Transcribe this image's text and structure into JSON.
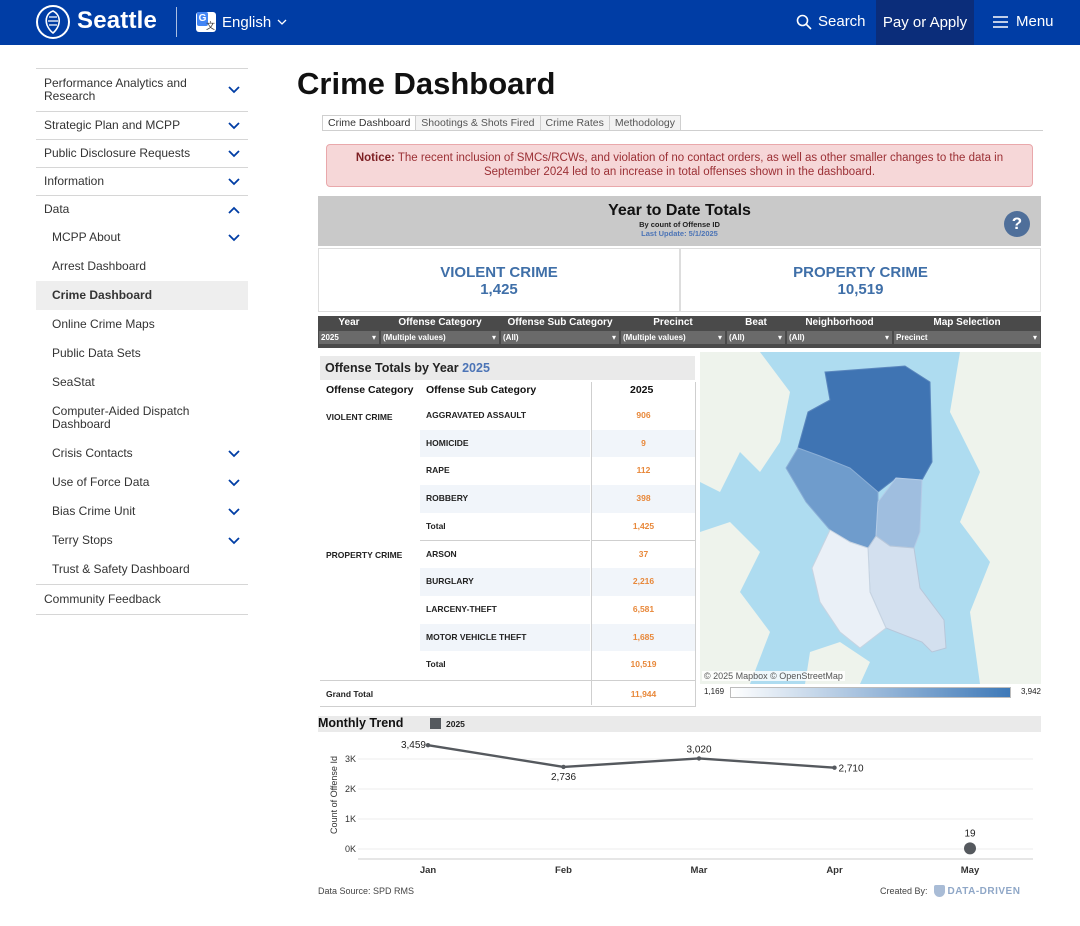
{
  "header": {
    "brand": "Seattle",
    "language": "English",
    "search_label": "Search",
    "pay_label": "Pay or Apply",
    "menu_label": "Menu"
  },
  "sidebar": {
    "items": [
      {
        "label": "Performance Analytics and Research",
        "chevron": "down"
      },
      {
        "label": "Strategic Plan and MCPP",
        "chevron": "down"
      },
      {
        "label": "Public Disclosure Requests",
        "chevron": "down"
      },
      {
        "label": "Information",
        "chevron": "down"
      },
      {
        "label": "Data",
        "chevron": "up"
      }
    ],
    "sub_items": [
      {
        "label": "MCPP About",
        "chevron": "down"
      },
      {
        "label": "Arrest Dashboard"
      },
      {
        "label": "Crime Dashboard",
        "active": true
      },
      {
        "label": "Online Crime Maps"
      },
      {
        "label": "Public Data Sets"
      },
      {
        "label": "SeaStat"
      },
      {
        "label": "Computer-Aided Dispatch Dashboard"
      },
      {
        "label": "Crisis Contacts",
        "chevron": "down"
      },
      {
        "label": "Use of Force Data",
        "chevron": "down"
      },
      {
        "label": "Bias Crime Unit",
        "chevron": "down"
      },
      {
        "label": "Terry Stops",
        "chevron": "down"
      },
      {
        "label": "Trust & Safety Dashboard"
      }
    ],
    "footer_item": "Community Feedback"
  },
  "page_title": "Crime Dashboard",
  "tabs": [
    "Crime Dashboard",
    "Shootings & Shots Fired",
    "Crime Rates",
    "Methodology"
  ],
  "notice": {
    "prefix": "Notice:",
    "text": " The recent inclusion of SMCs/RCWs, and violation of no contact orders, as well as other smaller changes to the data in September 2024 led to an increase in total offenses shown in the dashboard."
  },
  "ytd": {
    "title": "Year to Date Totals",
    "subtitle": "By count of Offense ID",
    "updated": "Last Update: 5/1/2025",
    "help": "?"
  },
  "kpis": {
    "violent": {
      "label": "VIOLENT CRIME",
      "value": "1,425"
    },
    "property": {
      "label": "PROPERTY CRIME",
      "value": "10,519"
    }
  },
  "filters": [
    {
      "label": "Year",
      "value": "2025"
    },
    {
      "label": "Offense Category",
      "value": "(Multiple values)"
    },
    {
      "label": "Offense Sub Category",
      "value": "(All)"
    },
    {
      "label": "Precinct",
      "value": "(Multiple values)"
    },
    {
      "label": "Beat",
      "value": "(All)"
    },
    {
      "label": "Neighborhood",
      "value": "(All)"
    },
    {
      "label": "Map Selection",
      "value": "Precinct"
    }
  ],
  "offense_table": {
    "title": "Offense Totals by Year",
    "title_year": "2025",
    "headers": [
      "Offense Category",
      "Offense Sub Category",
      "2025"
    ],
    "rows": [
      {
        "category": "VIOLENT CRIME",
        "sub": "AGGRAVATED ASSAULT",
        "value": "906"
      },
      {
        "category": "",
        "sub": "HOMICIDE",
        "value": "9"
      },
      {
        "category": "",
        "sub": "RAPE",
        "value": "112"
      },
      {
        "category": "",
        "sub": "ROBBERY",
        "value": "398"
      },
      {
        "category": "",
        "sub": "Total",
        "value": "1,425",
        "total": true
      },
      {
        "category": "PROPERTY CRIME",
        "sub": "ARSON",
        "value": "37"
      },
      {
        "category": "",
        "sub": "BURGLARY",
        "value": "2,216"
      },
      {
        "category": "",
        "sub": "LARCENY-THEFT",
        "value": "6,581"
      },
      {
        "category": "",
        "sub": "MOTOR VEHICLE THEFT",
        "value": "1,685"
      },
      {
        "category": "",
        "sub": "Total",
        "value": "10,519",
        "total": true
      }
    ],
    "grand_total_label": "Grand Total",
    "grand_total_value": "11,944"
  },
  "map": {
    "attribution": "© 2025 Mapbox © OpenStreetMap",
    "legend_min": "1,169",
    "legend_max": "3,942"
  },
  "monthly_trend": {
    "title": "Monthly Trend",
    "legend": "2025",
    "y_axis_label": "Count of Offense Id",
    "data_source": "Data Source: SPD RMS",
    "created_by": "Created By:",
    "creator": "DATA-DRIVEN"
  },
  "chart_data": {
    "type": "line",
    "categories": [
      "Jan",
      "Feb",
      "Mar",
      "Apr",
      "May"
    ],
    "series": [
      {
        "name": "2025",
        "values": [
          3459,
          2736,
          3020,
          2710,
          19
        ]
      }
    ],
    "data_labels": [
      "3,459",
      "2,736",
      "3,020",
      "2,710",
      "19"
    ],
    "y_ticks": [
      "0K",
      "1K",
      "2K",
      "3K"
    ],
    "ylim": [
      0,
      3600
    ],
    "ylabel": "Count of Offense Id",
    "color": "#55595e"
  }
}
